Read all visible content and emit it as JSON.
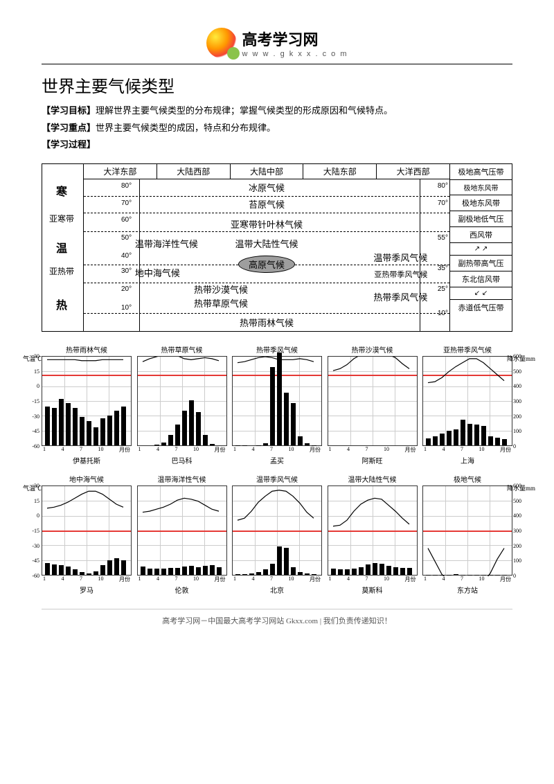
{
  "header": {
    "brand": "高考学习网",
    "url": "w w w . g k x x . c o m"
  },
  "title": "世界主要气候类型",
  "intro": {
    "goal_label": "【学习目标】",
    "goal_text": "理解世界主要气候类型的分布规律；掌握气候类型的形成原因和气候特点。",
    "focus_label": "【学习重点】",
    "focus_text": "世界主要气候类型的成因，特点和分布规律。",
    "process_label": "【学习过程】"
  },
  "diagram": {
    "zones": [
      "寒",
      "亚寒带",
      "温",
      "亚热带",
      "热"
    ],
    "cols": [
      "大洋东部",
      "大陆西部",
      "大陆中部",
      "大陆东部",
      "大洋西部"
    ],
    "degrees_left": [
      "80°",
      "70°",
      "60°",
      "50°",
      "40°",
      "30°",
      "20°",
      "10°"
    ],
    "degrees_right": [
      "80°",
      "70°",
      "55°",
      "35°",
      "25°",
      "10°"
    ],
    "climates": {
      "ice": "冰原气候",
      "tundra": "苔原气候",
      "subarctic": "亚寒带针叶林气候",
      "marine": "温带海洋性气候",
      "continental": "温带大陆性气候",
      "monsoon_temp": "温带季风气候",
      "plateau": "高原气候",
      "med": "地中海气候",
      "subtrop_monsoon": "亚热带季风气候",
      "desert": "热带沙漠气候",
      "savanna": "热带草原气候",
      "trop_monsoon": "热带季风气候",
      "rainforest": "热带雨林气候"
    },
    "winds": [
      "极地高气压带",
      "极地东风带",
      "副极地低气压",
      "西风带",
      "副热带高气压",
      "东北信风带",
      "赤道低气压带"
    ]
  },
  "chart_meta": {
    "temp_label": "气温℃",
    "precip_label": "降水量mm",
    "month_label": "月份",
    "temp_ticks": [
      30,
      15,
      0,
      -15,
      -30,
      -45,
      -60
    ],
    "precip_ticks": [
      600,
      500,
      400,
      300,
      200,
      100,
      0
    ],
    "x_ticks": [
      "1",
      "4",
      "7",
      "10"
    ],
    "redline_color": "#e53935",
    "bar_color": "#000000",
    "grid_color": "#cccccc"
  },
  "charts": [
    {
      "title": "热带雨林气候",
      "city": "伊基托斯",
      "redline_y": 0.2,
      "temp": [
        27,
        27,
        27,
        27,
        27,
        26,
        26,
        26,
        27,
        27,
        27,
        27
      ],
      "precip": [
        260,
        250,
        310,
        280,
        250,
        190,
        160,
        120,
        180,
        200,
        230,
        260
      ]
    },
    {
      "title": "热带草原气候",
      "city": "巴马科",
      "redline_y": 0.2,
      "temp": [
        25,
        28,
        30,
        32,
        33,
        31,
        28,
        27,
        28,
        29,
        28,
        26
      ],
      "precip": [
        0,
        0,
        5,
        20,
        70,
        140,
        230,
        300,
        220,
        70,
        10,
        0
      ]
    },
    {
      "title": "热带季风气候",
      "city": "孟买",
      "redline_y": 0.2,
      "temp": [
        24,
        25,
        27,
        29,
        30,
        29,
        27,
        27,
        27,
        28,
        27,
        25
      ],
      "precip": [
        2,
        1,
        0,
        1,
        15,
        520,
        620,
        350,
        280,
        60,
        15,
        2
      ]
    },
    {
      "title": "热带沙漠气候",
      "city": "阿斯旺",
      "redline_y": 0.2,
      "temp": [
        16,
        18,
        22,
        28,
        32,
        34,
        34,
        34,
        32,
        29,
        23,
        18
      ],
      "precip": [
        0,
        0,
        0,
        0,
        0,
        0,
        0,
        0,
        0,
        0,
        0,
        0
      ]
    },
    {
      "title": "亚热带季风气候",
      "city": "上海",
      "redline_y": 0.2,
      "temp": [
        4,
        5,
        9,
        15,
        20,
        24,
        28,
        28,
        24,
        18,
        12,
        6
      ],
      "precip": [
        45,
        60,
        80,
        95,
        105,
        170,
        145,
        140,
        130,
        60,
        50,
        40
      ]
    },
    {
      "title": "地中海气候",
      "city": "罗马",
      "redline_y": 0.5,
      "temp": [
        8,
        9,
        11,
        14,
        18,
        22,
        25,
        25,
        22,
        17,
        12,
        9
      ],
      "precip": [
        80,
        70,
        65,
        55,
        35,
        20,
        10,
        25,
        65,
        95,
        110,
        95
      ]
    },
    {
      "title": "温带海洋性气候",
      "city": "伦敦",
      "redline_y": 0.5,
      "temp": [
        4,
        5,
        7,
        9,
        12,
        16,
        18,
        17,
        15,
        11,
        7,
        5
      ],
      "precip": [
        55,
        40,
        40,
        40,
        45,
        45,
        55,
        60,
        50,
        60,
        65,
        50
      ]
    },
    {
      "title": "温带季风气候",
      "city": "北京",
      "redline_y": 0.5,
      "temp": [
        -4,
        -2,
        5,
        14,
        20,
        25,
        26,
        25,
        20,
        13,
        4,
        -2
      ],
      "precip": [
        3,
        6,
        10,
        20,
        35,
        75,
        190,
        180,
        50,
        18,
        8,
        3
      ]
    },
    {
      "title": "温带大陆性气候",
      "city": "莫斯科",
      "redline_y": 0.5,
      "temp": [
        -10,
        -9,
        -4,
        5,
        12,
        16,
        18,
        17,
        11,
        5,
        -2,
        -8
      ],
      "precip": [
        40,
        35,
        35,
        40,
        50,
        70,
        80,
        75,
        60,
        50,
        45,
        45
      ]
    },
    {
      "title": "极地气候",
      "city": "东方站",
      "redline_y": 0.5,
      "temp": [
        -32,
        -45,
        -58,
        -65,
        -66,
        -66,
        -67,
        -68,
        -66,
        -57,
        -43,
        -32
      ],
      "precip": [
        2,
        1,
        2,
        2,
        3,
        2,
        2,
        2,
        2,
        2,
        2,
        2
      ]
    }
  ],
  "footer": "高考学习网－中国最大高考学习网站 Gkxx.com  |  我们负责传递知识！"
}
